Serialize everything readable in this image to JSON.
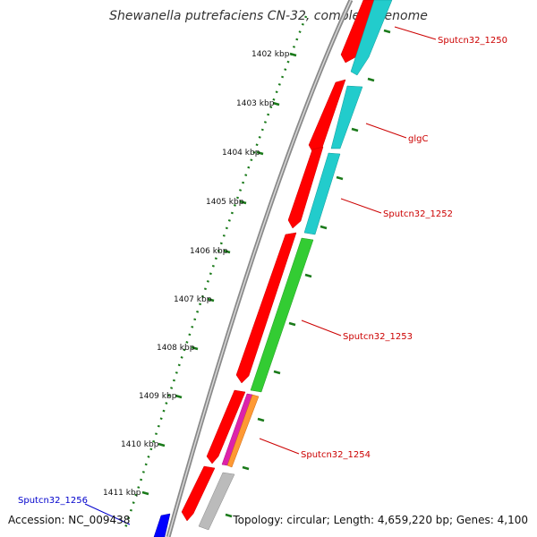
{
  "title": "Shewanella putrefaciens CN-32, complete genome",
  "accession": "Accession: NC_009438",
  "summary": "Topology: circular; Length: 4,659,220 bp; Genes: 4,100",
  "ticks": [
    "1402 kbp",
    "1403 kbp",
    "1404 kbp",
    "1405 kbp",
    "1406 kbp",
    "1407 kbp",
    "1408 kbp",
    "1409 kbp",
    "1410 kbp",
    "1411 kbp"
  ],
  "gene_labels": [
    {
      "text": "Sputcn32_1250",
      "color": "#cc0000"
    },
    {
      "text": "glgC",
      "color": "#cc0000"
    },
    {
      "text": "Sputcn32_1252",
      "color": "#cc0000"
    },
    {
      "text": "Sputcn32_1253",
      "color": "#cc0000"
    },
    {
      "text": "Sputcn32_1254",
      "color": "#cc0000"
    },
    {
      "text": "Sputcn32_1256",
      "color": "#0000cc"
    }
  ],
  "colors": {
    "cds": "#ff0000",
    "cyan": "#22cccc",
    "green": "#33cc33",
    "magenta": "#dd22aa",
    "orange": "#ff9933",
    "gray": "#bbbbbb",
    "blue": "#0000ff",
    "tick": "#006600",
    "backbone": "#888888"
  }
}
